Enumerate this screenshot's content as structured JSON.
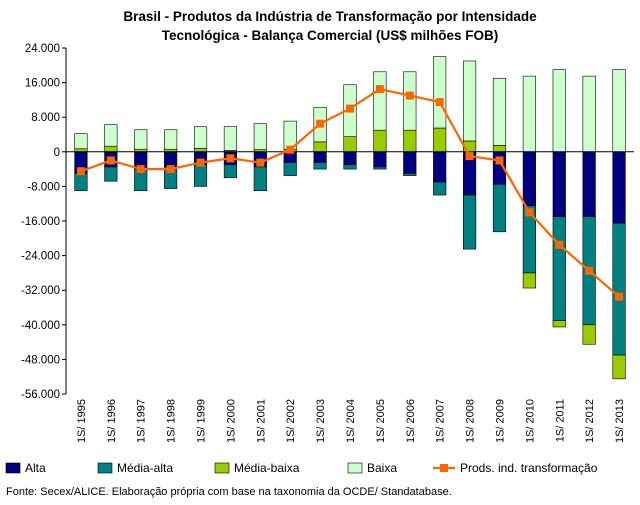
{
  "chart_data": {
    "type": "bar",
    "stacked": true,
    "title_lines": [
      "Brasil - Produtos da Indústria de Transformação por Intensidade",
      "Tecnológica - Balança Comercial (US$ milhões FOB)"
    ],
    "xlabel": "",
    "ylabel": "",
    "ylim": [
      -56000,
      24000
    ],
    "yticks": [
      24000,
      16000,
      8000,
      0,
      -8000,
      -16000,
      -24000,
      -32000,
      -40000,
      -48000,
      -56000
    ],
    "ytick_labels": [
      "24.000",
      "16.000",
      "8.000",
      "0",
      "-8.000",
      "-16.000",
      "-24.000",
      "-32.000",
      "-40.000",
      "-48.000",
      "-56.000"
    ],
    "grid": false,
    "legend_position": "bottom",
    "categories": [
      "1S/ 1995",
      "1S/ 1996",
      "1S/ 1997",
      "1S/ 1998",
      "1S/ 1999",
      "1S/ 2000",
      "1S/ 2001",
      "1S/ 2002",
      "1S/ 2003",
      "1S/ 2004",
      "1S/ 2005",
      "1S/ 2006",
      "1S/ 2007",
      "1S/ 2008",
      "1S/ 2009",
      "1S/ 2010",
      "1S/ 2011",
      "1S/ 2012",
      "1S/ 2013"
    ],
    "series": [
      {
        "name": "Alta",
        "type": "bar",
        "color": "#000080",
        "values": [
          -5000,
          -3500,
          -4000,
          -3500,
          -3000,
          -3000,
          -3500,
          -2500,
          -2500,
          -3000,
          -3500,
          -5000,
          -7000,
          -10000,
          -7500,
          -12500,
          -15000,
          -15000,
          -16500
        ]
      },
      {
        "name": "Média-alta",
        "type": "bar",
        "color": "#008080",
        "values": [
          -4000,
          -3300,
          -5000,
          -5000,
          -5000,
          -3000,
          -5500,
          -3000,
          -1500,
          -1000,
          -500,
          -500,
          -3000,
          -12500,
          -11000,
          -15500,
          -24000,
          -25000,
          -30500
        ]
      },
      {
        "name": "Média-baixa",
        "type": "bar",
        "color": "#99CC00",
        "values": [
          700,
          1300,
          600,
          600,
          800,
          300,
          500,
          600,
          2300,
          3500,
          5000,
          5000,
          5500,
          2500,
          1500,
          -3500,
          -1500,
          -4500,
          -5500
        ]
      },
      {
        "name": "Baixa",
        "type": "bar",
        "color": "#CCFFCC",
        "values": [
          3500,
          5000,
          4500,
          4500,
          5000,
          5500,
          6000,
          6500,
          8000,
          12000,
          13500,
          13500,
          16500,
          18500,
          15500,
          17500,
          19000,
          17500,
          19000
        ]
      },
      {
        "name": "Prods. ind. transformação",
        "type": "line",
        "color": "#FF6600",
        "values": [
          -4500,
          -2000,
          -4000,
          -4000,
          -2500,
          -1500,
          -2500,
          500,
          6500,
          10000,
          14500,
          13000,
          11500,
          -1000,
          -2000,
          -14000,
          -21500,
          -27500,
          -33500
        ]
      }
    ],
    "source": "Fonte: Secex/ALICE. Elaboração própria com base na taxonomia da OCDE/ Standatabase."
  }
}
